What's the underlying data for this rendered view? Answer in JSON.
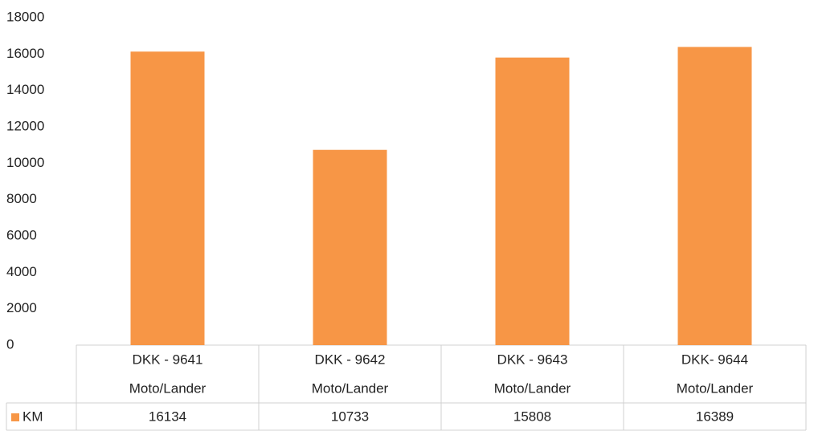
{
  "chart_data": {
    "type": "bar",
    "categories": [
      [
        "DKK - 9641",
        "Moto/Lander"
      ],
      [
        "DKK - 9642",
        "Moto/Lander"
      ],
      [
        "DKK - 9643",
        "Moto/Lander"
      ],
      [
        "DKK- 9644",
        "Moto/Lander"
      ]
    ],
    "series": [
      {
        "name": "KM",
        "color": "#f79646",
        "values": [
          16134,
          10733,
          15808,
          16389
        ]
      }
    ],
    "ylim": [
      0,
      18000
    ],
    "yticks": [
      0,
      2000,
      4000,
      6000,
      8000,
      10000,
      12000,
      14000,
      16000,
      18000
    ],
    "grid": false,
    "legend": "data-table"
  }
}
